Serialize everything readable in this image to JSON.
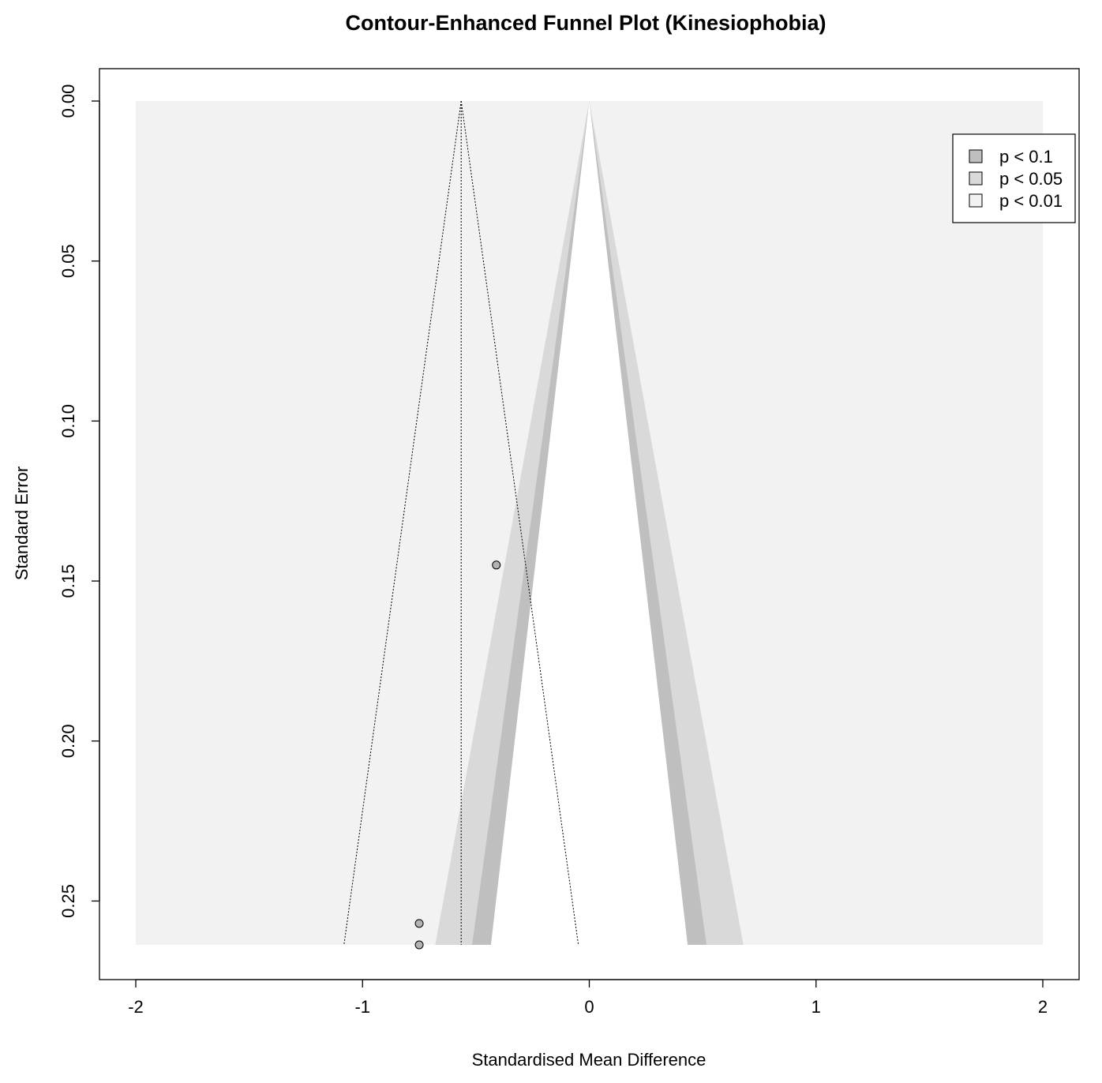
{
  "chart_data": {
    "type": "scatter",
    "title": "Contour-Enhanced Funnel Plot (Kinesiophobia)",
    "xlabel": "Standardised Mean Difference",
    "ylabel": "Standard Error",
    "xlim": [
      -2,
      2
    ],
    "ylim": [
      0.2637,
      0
    ],
    "x_ticks": [
      -2,
      -1,
      0,
      1,
      2
    ],
    "x_tick_labels": [
      "-2",
      "-1",
      "0",
      "1",
      "2"
    ],
    "y_ticks": [
      0,
      0.05,
      0.1,
      0.15,
      0.2,
      0.25
    ],
    "y_tick_labels": [
      "0.00",
      "0.05",
      "0.10",
      "0.15",
      "0.20",
      "0.25"
    ],
    "pooled_estimate": -0.565,
    "contour_center": 0,
    "contour_levels": [
      {
        "label": "p < 0.1",
        "z": 1.645,
        "color": "#bfbfbf"
      },
      {
        "label": "p < 0.05",
        "z": 1.96,
        "color": "#d9d9d9"
      },
      {
        "label": "p < 0.01",
        "z": 2.576,
        "color": "#f2f2f2"
      }
    ],
    "points": [
      {
        "x": -0.41,
        "y": 0.145
      },
      {
        "x": -0.75,
        "y": 0.257
      },
      {
        "x": -0.75,
        "y": 0.2637
      }
    ],
    "legend_position": "top-right",
    "grid": false,
    "colors": {
      "outer_region": "#f2f2f2",
      "band_p01": "#d9d9d9",
      "band_p05": "#bfbfbf",
      "inner": "#ffffff",
      "point_fill": "#b3b3b3"
    }
  }
}
